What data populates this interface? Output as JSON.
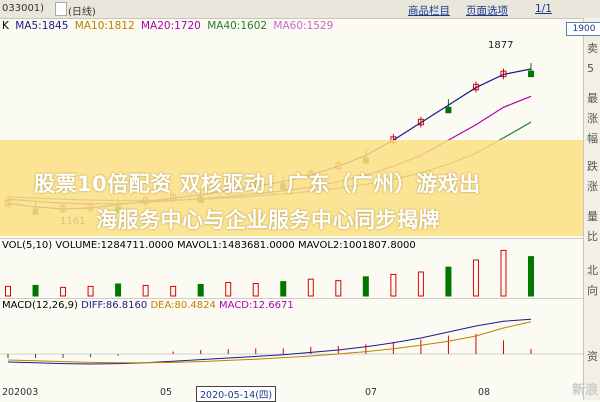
{
  "topbar": {
    "code": "033001)",
    "period": "(日线)",
    "menu_items": [
      "商品栏目",
      "页面选项",
      "1/1"
    ]
  },
  "ma_legend": {
    "k": "K",
    "ma5": "MA5:1845",
    "ma10": "MA10:1812",
    "ma20": "MA20:1720",
    "ma40": "MA40:1602",
    "ma60": "MA60:1529",
    "colors": {
      "k": "#000000",
      "ma5": "#1a1a8a",
      "ma10": "#d4a000",
      "ma20": "#c000c0",
      "ma40": "#2a8a2a",
      "ma60": "#cc66cc"
    }
  },
  "price_labels": {
    "high": "1877",
    "low": "1161"
  },
  "right_axis": {
    "price_tag": "1900",
    "chars": [
      "卖",
      "5",
      "最",
      "涨",
      "幅",
      "跌",
      "涨",
      "量",
      "比",
      "北",
      "向",
      "资"
    ]
  },
  "volume_legend": "VOL(5,10)  VOLUME:1284711.0000  MAVOL1:1483681.0000  MAVOL2:1001807.8000",
  "macd_legend": {
    "title": "MACD(12,26,9)",
    "diff": "DIFF:86.8160",
    "dea": "DEA:80.4824",
    "macd": "MACD:12.6671"
  },
  "xaxis": {
    "labels": [
      "202003",
      "05",
      "07",
      "08"
    ],
    "cursor_date": "2020-05-14(四)"
  },
  "banner": {
    "line1": "股票10倍配资 双核驱动！广东（广州）游戏出",
    "line2": "海服务中心与企业服务中心同步揭牌"
  },
  "watermark": "新浪",
  "chart_data": {
    "type": "line",
    "title": "",
    "series": [
      {
        "name": "MA5",
        "values": [
          1230,
          1215,
          1205,
          1210,
          1225,
          1240,
          1255,
          1270,
          1290,
          1310,
          1330,
          1360,
          1400,
          1450,
          1520,
          1600,
          1680,
          1760,
          1820,
          1845
        ]
      },
      {
        "name": "MA20",
        "values": [
          1250,
          1240,
          1232,
          1228,
          1230,
          1236,
          1244,
          1252,
          1262,
          1275,
          1288,
          1305,
          1330,
          1360,
          1400,
          1450,
          1520,
          1590,
          1670,
          1720
        ]
      },
      {
        "name": "MA40",
        "values": [
          1260,
          1255,
          1250,
          1246,
          1244,
          1244,
          1246,
          1250,
          1256,
          1264,
          1274,
          1286,
          1300,
          1318,
          1340,
          1370,
          1410,
          1460,
          1530,
          1602
        ]
      }
    ],
    "close_high": 1877,
    "close_low": 1161,
    "volume": [
      0.2,
      0.22,
      0.18,
      0.2,
      0.25,
      0.22,
      0.2,
      0.24,
      0.28,
      0.26,
      0.3,
      0.35,
      0.32,
      0.4,
      0.45,
      0.5,
      0.6,
      0.75,
      0.95,
      0.82
    ],
    "macd_diff": [
      -20,
      -22,
      -24,
      -25,
      -24,
      -22,
      -18,
      -14,
      -10,
      -6,
      -2,
      4,
      10,
      18,
      28,
      40,
      55,
      70,
      82,
      86.8
    ],
    "macd_dea": [
      -15,
      -17,
      -19,
      -21,
      -22,
      -22,
      -21,
      -19,
      -16,
      -13,
      -9,
      -5,
      0,
      6,
      13,
      22,
      32,
      45,
      65,
      80.5
    ]
  }
}
